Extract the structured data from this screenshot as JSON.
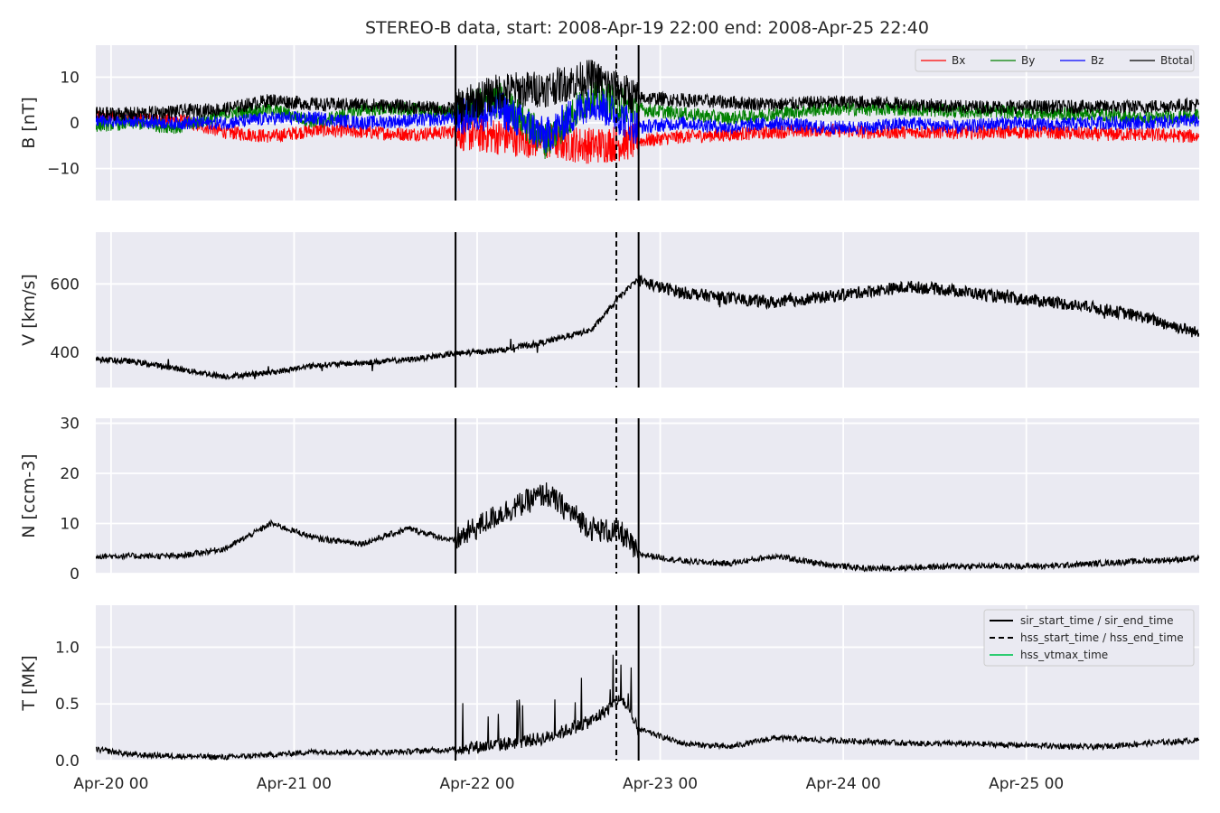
{
  "chart_data": {
    "title": "STEREO-B data, start: 2008-Apr-19 22:00  end: 2008-Apr-25 22:40",
    "x_range": [
      "2008-04-19 22:00",
      "2008-04-25 22:40"
    ],
    "x_ticks": [
      "2008-04-20 00:00",
      "2008-04-21 00:00",
      "2008-04-22 00:00",
      "2008-04-23 00:00",
      "2008-04-24 00:00",
      "2008-04-25 00:00"
    ],
    "x_tick_labels": [
      "Apr-20 00",
      "Apr-21 00",
      "Apr-22 00",
      "Apr-23 00",
      "Apr-24 00",
      "Apr-25 00"
    ],
    "background": "#eaeaf2",
    "grid": true,
    "vertical_markers": [
      {
        "name": "sir_start_time",
        "time": "2008-04-21 21:10",
        "style": "solid",
        "color": "#000000"
      },
      {
        "name": "hss_start_time",
        "time": "2008-04-22 18:15",
        "style": "dashed",
        "color": "#000000"
      },
      {
        "name": "sir_end_time",
        "time": "2008-04-22 21:10",
        "style": "solid",
        "color": "#000000"
      }
    ],
    "panels": [
      {
        "type": "line",
        "ylabel": "B [nT]",
        "ylim": [
          -17,
          17
        ],
        "yticks": [
          -10,
          0,
          10
        ],
        "ytick_labels": [
          "−10",
          "0",
          "10"
        ],
        "legend": {
          "position": "top-right",
          "ncol": 4
        },
        "series": [
          {
            "name": "Bx",
            "color": "#ff0000",
            "width": 1,
            "points": [
              [
                "2008-04-19 22:00",
                1.5
              ],
              [
                "2008-04-20 03:00",
                1.0
              ],
              [
                "2008-04-20 09:00",
                0.5
              ],
              [
                "2008-04-20 15:00",
                -2.0
              ],
              [
                "2008-04-20 21:00",
                -3.0
              ],
              [
                "2008-04-21 03:00",
                -1.5
              ],
              [
                "2008-04-21 09:00",
                -2.0
              ],
              [
                "2008-04-21 15:00",
                -2.5
              ],
              [
                "2008-04-21 21:00",
                -2.0
              ],
              [
                "2008-04-22 03:00",
                -3.0
              ],
              [
                "2008-04-22 09:00",
                -4.0
              ],
              [
                "2008-04-22 15:00",
                -5.0
              ],
              [
                "2008-04-22 21:00",
                -4.0
              ],
              [
                "2008-04-23 03:00",
                -3.0
              ],
              [
                "2008-04-23 09:00",
                -2.5
              ],
              [
                "2008-04-23 15:00",
                -2.0
              ],
              [
                "2008-04-23 21:00",
                -1.5
              ],
              [
                "2008-04-24 03:00",
                -2.0
              ],
              [
                "2008-04-24 09:00",
                -2.0
              ],
              [
                "2008-04-24 15:00",
                -2.0
              ],
              [
                "2008-04-24 21:00",
                -2.0
              ],
              [
                "2008-04-25 03:00",
                -2.0
              ],
              [
                "2008-04-25 09:00",
                -2.5
              ],
              [
                "2008-04-25 15:00",
                -2.5
              ],
              [
                "2008-04-25 22:40",
                -3.0
              ]
            ]
          },
          {
            "name": "By",
            "color": "#008000",
            "width": 1,
            "points": [
              [
                "2008-04-19 22:00",
                -0.5
              ],
              [
                "2008-04-20 03:00",
                0.0
              ],
              [
                "2008-04-20 09:00",
                -1.0
              ],
              [
                "2008-04-20 15:00",
                2.0
              ],
              [
                "2008-04-20 21:00",
                3.0
              ],
              [
                "2008-04-21 03:00",
                0.0
              ],
              [
                "2008-04-21 09:00",
                3.0
              ],
              [
                "2008-04-21 15:00",
                3.0
              ],
              [
                "2008-04-21 21:00",
                2.0
              ],
              [
                "2008-04-22 03:00",
                5.0
              ],
              [
                "2008-04-22 09:00",
                -4.0
              ],
              [
                "2008-04-22 15:00",
                6.0
              ],
              [
                "2008-04-22 21:00",
                3.0
              ],
              [
                "2008-04-23 03:00",
                2.0
              ],
              [
                "2008-04-23 09:00",
                1.0
              ],
              [
                "2008-04-23 15:00",
                2.0
              ],
              [
                "2008-04-23 21:00",
                3.0
              ],
              [
                "2008-04-24 03:00",
                3.0
              ],
              [
                "2008-04-24 09:00",
                3.0
              ],
              [
                "2008-04-24 15:00",
                2.5
              ],
              [
                "2008-04-24 21:00",
                2.5
              ],
              [
                "2008-04-25 03:00",
                2.0
              ],
              [
                "2008-04-25 09:00",
                2.0
              ],
              [
                "2008-04-25 15:00",
                1.0
              ],
              [
                "2008-04-25 22:40",
                1.5
              ]
            ]
          },
          {
            "name": "Bz",
            "color": "#0000ff",
            "width": 1,
            "points": [
              [
                "2008-04-19 22:00",
                0.5
              ],
              [
                "2008-04-20 03:00",
                0.5
              ],
              [
                "2008-04-20 09:00",
                0.0
              ],
              [
                "2008-04-20 15:00",
                0.0
              ],
              [
                "2008-04-20 21:00",
                1.0
              ],
              [
                "2008-04-21 03:00",
                1.0
              ],
              [
                "2008-04-21 09:00",
                0.0
              ],
              [
                "2008-04-21 15:00",
                0.5
              ],
              [
                "2008-04-21 21:00",
                1.0
              ],
              [
                "2008-04-22 03:00",
                3.0
              ],
              [
                "2008-04-22 09:00",
                -3.0
              ],
              [
                "2008-04-22 15:00",
                5.0
              ],
              [
                "2008-04-22 21:00",
                -1.0
              ],
              [
                "2008-04-23 03:00",
                0.0
              ],
              [
                "2008-04-23 09:00",
                -1.0
              ],
              [
                "2008-04-23 15:00",
                0.0
              ],
              [
                "2008-04-23 21:00",
                -1.0
              ],
              [
                "2008-04-24 03:00",
                -1.0
              ],
              [
                "2008-04-24 09:00",
                0.0
              ],
              [
                "2008-04-24 15:00",
                -1.0
              ],
              [
                "2008-04-24 21:00",
                0.0
              ],
              [
                "2008-04-25 03:00",
                -0.5
              ],
              [
                "2008-04-25 09:00",
                0.0
              ],
              [
                "2008-04-25 15:00",
                0.0
              ],
              [
                "2008-04-25 22:40",
                0.5
              ]
            ]
          },
          {
            "name": "Btotal",
            "color": "#000000",
            "width": 1,
            "points": [
              [
                "2008-04-19 22:00",
                2.0
              ],
              [
                "2008-04-20 03:00",
                2.0
              ],
              [
                "2008-04-20 09:00",
                2.5
              ],
              [
                "2008-04-20 15:00",
                3.0
              ],
              [
                "2008-04-20 21:00",
                5.0
              ],
              [
                "2008-04-21 03:00",
                4.0
              ],
              [
                "2008-04-21 09:00",
                4.0
              ],
              [
                "2008-04-21 15:00",
                3.5
              ],
              [
                "2008-04-21 21:00",
                3.0
              ],
              [
                "2008-04-22 03:00",
                7.0
              ],
              [
                "2008-04-22 09:00",
                7.5
              ],
              [
                "2008-04-22 15:00",
                10.0
              ],
              [
                "2008-04-22 21:00",
                5.5
              ],
              [
                "2008-04-23 03:00",
                5.0
              ],
              [
                "2008-04-23 09:00",
                4.5
              ],
              [
                "2008-04-23 15:00",
                4.0
              ],
              [
                "2008-04-23 21:00",
                4.5
              ],
              [
                "2008-04-24 03:00",
                4.5
              ],
              [
                "2008-04-24 09:00",
                4.0
              ],
              [
                "2008-04-24 15:00",
                3.5
              ],
              [
                "2008-04-24 21:00",
                3.5
              ],
              [
                "2008-04-25 03:00",
                3.5
              ],
              [
                "2008-04-25 09:00",
                3.5
              ],
              [
                "2008-04-25 15:00",
                3.5
              ],
              [
                "2008-04-25 22:40",
                4.0
              ]
            ]
          }
        ]
      },
      {
        "type": "line",
        "ylabel": "V [km/s]",
        "ylim": [
          296,
          752
        ],
        "yticks": [
          400,
          600
        ],
        "ytick_labels": [
          "400",
          "600"
        ],
        "series": [
          {
            "name": "",
            "color": "#000000",
            "width": 1.4,
            "points": [
              [
                "2008-04-19 22:00",
                380
              ],
              [
                "2008-04-20 03:00",
                372
              ],
              [
                "2008-04-20 09:00",
                350
              ],
              [
                "2008-04-20 15:00",
                328
              ],
              [
                "2008-04-20 21:00",
                340
              ],
              [
                "2008-04-21 03:00",
                362
              ],
              [
                "2008-04-21 09:00",
                368
              ],
              [
                "2008-04-21 15:00",
                378
              ],
              [
                "2008-04-21 21:00",
                395
              ],
              [
                "2008-04-22 03:00",
                405
              ],
              [
                "2008-04-22 09:00",
                430
              ],
              [
                "2008-04-22 15:00",
                465
              ],
              [
                "2008-04-22 19:00",
                570
              ],
              [
                "2008-04-22 21:00",
                612
              ],
              [
                "2008-04-23 00:00",
                590
              ],
              [
                "2008-04-23 03:00",
                575
              ],
              [
                "2008-04-23 09:00",
                558
              ],
              [
                "2008-04-23 15:00",
                545
              ],
              [
                "2008-04-23 21:00",
                560
              ],
              [
                "2008-04-24 03:00",
                578
              ],
              [
                "2008-04-24 09:00",
                592
              ],
              [
                "2008-04-24 15:00",
                580
              ],
              [
                "2008-04-24 21:00",
                560
              ],
              [
                "2008-04-25 03:00",
                548
              ],
              [
                "2008-04-25 09:00",
                530
              ],
              [
                "2008-04-25 15:00",
                505
              ],
              [
                "2008-04-25 22:40",
                455
              ]
            ]
          }
        ]
      },
      {
        "type": "line",
        "ylabel": "N [ccm-3]",
        "ylim": [
          0,
          31
        ],
        "yticks": [
          0,
          10,
          20,
          30
        ],
        "ytick_labels": [
          "0",
          "10",
          "20",
          "30"
        ],
        "series": [
          {
            "name": "",
            "color": "#000000",
            "width": 1.2,
            "points": [
              [
                "2008-04-19 22:00",
                3.5
              ],
              [
                "2008-04-20 03:00",
                3.5
              ],
              [
                "2008-04-20 09:00",
                3.5
              ],
              [
                "2008-04-20 15:00",
                5.0
              ],
              [
                "2008-04-20 21:00",
                10.0
              ],
              [
                "2008-04-21 03:00",
                7.0
              ],
              [
                "2008-04-21 09:00",
                6.0
              ],
              [
                "2008-04-21 15:00",
                9.0
              ],
              [
                "2008-04-21 21:00",
                6.5
              ],
              [
                "2008-04-22 03:00",
                12.0
              ],
              [
                "2008-04-22 09:00",
                16.0
              ],
              [
                "2008-04-22 15:00",
                9.0
              ],
              [
                "2008-04-22 19:00",
                8.0
              ],
              [
                "2008-04-22 21:00",
                4.0
              ],
              [
                "2008-04-23 03:00",
                2.5
              ],
              [
                "2008-04-23 09:00",
                2.0
              ],
              [
                "2008-04-23 15:00",
                3.5
              ],
              [
                "2008-04-23 21:00",
                2.0
              ],
              [
                "2008-04-24 03:00",
                1.0
              ],
              [
                "2008-04-24 09:00",
                1.2
              ],
              [
                "2008-04-24 15:00",
                1.5
              ],
              [
                "2008-04-24 21:00",
                1.5
              ],
              [
                "2008-04-25 03:00",
                1.5
              ],
              [
                "2008-04-25 09:00",
                2.0
              ],
              [
                "2008-04-25 15:00",
                2.5
              ],
              [
                "2008-04-25 22:40",
                3.0
              ]
            ]
          }
        ]
      },
      {
        "type": "line",
        "ylabel": "T [MK]",
        "ylim": [
          0,
          1.37
        ],
        "yticks": [
          0.0,
          0.5,
          1.0
        ],
        "ytick_labels": [
          "0.0",
          "0.5",
          "1.0"
        ],
        "legend": {
          "position": "top-right",
          "entries": [
            {
              "label": "sir_start_time / sir_end_time",
              "style": "solid",
              "color": "#000000"
            },
            {
              "label": "hss_start_time / hss_end_time",
              "style": "dashed",
              "color": "#000000"
            },
            {
              "label": "hss_vtmax_time",
              "style": "solid",
              "color": "#2ecc71"
            }
          ]
        },
        "series": [
          {
            "name": "",
            "color": "#000000",
            "width": 1.2,
            "points": [
              [
                "2008-04-19 22:00",
                0.1
              ],
              [
                "2008-04-20 03:00",
                0.05
              ],
              [
                "2008-04-20 09:00",
                0.04
              ],
              [
                "2008-04-20 15:00",
                0.03
              ],
              [
                "2008-04-20 21:00",
                0.05
              ],
              [
                "2008-04-21 03:00",
                0.08
              ],
              [
                "2008-04-21 09:00",
                0.07
              ],
              [
                "2008-04-21 15:00",
                0.08
              ],
              [
                "2008-04-21 21:00",
                0.1
              ],
              [
                "2008-04-22 03:00",
                0.14
              ],
              [
                "2008-04-22 09:00",
                0.2
              ],
              [
                "2008-04-22 15:00",
                0.35
              ],
              [
                "2008-04-22 19:00",
                0.55
              ],
              [
                "2008-04-22 21:00",
                0.28
              ],
              [
                "2008-04-23 03:00",
                0.15
              ],
              [
                "2008-04-23 09:00",
                0.12
              ],
              [
                "2008-04-23 15:00",
                0.2
              ],
              [
                "2008-04-23 21:00",
                0.18
              ],
              [
                "2008-04-24 03:00",
                0.17
              ],
              [
                "2008-04-24 09:00",
                0.15
              ],
              [
                "2008-04-24 15:00",
                0.15
              ],
              [
                "2008-04-24 21:00",
                0.14
              ],
              [
                "2008-04-25 03:00",
                0.13
              ],
              [
                "2008-04-25 09:00",
                0.12
              ],
              [
                "2008-04-25 15:00",
                0.15
              ],
              [
                "2008-04-25 22:40",
                0.18
              ]
            ]
          }
        ]
      }
    ]
  }
}
